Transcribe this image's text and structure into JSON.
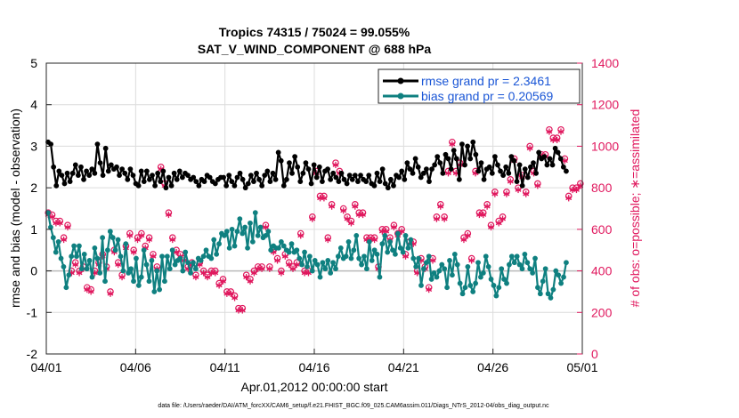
{
  "chart_data": {
    "type": "line",
    "title": "Tropics 74315 / 75024 = 99.055%",
    "subtitle": "SAT_V_WIND_COMPONENT @ 688 hPa",
    "xlabel": "Apr.01,2012 00:00:00 start",
    "ylabel": "rmse and bias (model - observation)",
    "y2label": "# of obs: o=possible; ∗=assimilated",
    "footer": "data file: /Users/raeder/DAI/ATM_forcXX/CAM6_setup/f.e21.FHIST_BGC.f09_025.CAM6assim.011/Diags_NTrS_2012-04/obs_diag_output.nc",
    "xlim": [
      0,
      30
    ],
    "ylim": [
      -2,
      5
    ],
    "y2lim": [
      0,
      1400
    ],
    "xticks": [
      0,
      5,
      10,
      15,
      20,
      25,
      30
    ],
    "xtick_labels": [
      "04/01",
      "04/06",
      "04/11",
      "04/16",
      "04/21",
      "04/26",
      "05/01"
    ],
    "yticks": [
      -2,
      -1,
      0,
      1,
      2,
      3,
      4,
      5
    ],
    "ytick_labels": [
      "-2",
      "-1",
      "0",
      "1",
      "2",
      "3",
      "4",
      "5"
    ],
    "y2ticks": [
      0,
      200,
      400,
      600,
      800,
      1000,
      1200,
      1400
    ],
    "y2tick_labels": [
      "0",
      "200",
      "400",
      "600",
      "800",
      "1000",
      "1200",
      "1400"
    ],
    "grid": true,
    "legend_position": "top-right",
    "series": [
      {
        "name": "rmse grand pr = 2.3461",
        "color": "#000000",
        "marker": "circle",
        "values": [
          3.1,
          3.05,
          2.5,
          2.05,
          2.4,
          2.3,
          2.1,
          2.35,
          2.15,
          2.35,
          2.55,
          2.3,
          2.5,
          2.2,
          2.4,
          2.3,
          2.45,
          2.35,
          3.05,
          2.6,
          2.3,
          2.95,
          2.4,
          2.55,
          2.45,
          2.5,
          2.3,
          2.45,
          2.35,
          2.2,
          2.45,
          2.3,
          2.1,
          2.05,
          2.4,
          2.15,
          2.4,
          2.2,
          2.3,
          2.05,
          2.35,
          2.15,
          2.4,
          2.0,
          2.25,
          2.05,
          2.35,
          2.2,
          2.4,
          2.25,
          2.35,
          2.3,
          2.2,
          2.25,
          2.15,
          2.05,
          2.2,
          2.15,
          2.3,
          2.25,
          2.15,
          2.1,
          2.2,
          2.25,
          2.25,
          2.05,
          2.3,
          2.15,
          2.05,
          2.25,
          2.35,
          2.2,
          2.0,
          2.1,
          2.3,
          2.15,
          2.35,
          2.2,
          2.05,
          2.3,
          2.4,
          2.15,
          2.35,
          2.2,
          2.85,
          2.65,
          2.05,
          2.2,
          2.6,
          2.35,
          2.75,
          2.5,
          2.15,
          2.35,
          2.6,
          2.45,
          2.1,
          2.55,
          2.25,
          2.5,
          2.15,
          2.4,
          2.45,
          2.2,
          2.35,
          2.25,
          2.15,
          2.35,
          2.2,
          2.1,
          2.3,
          2.2,
          2.3,
          2.15,
          2.3,
          2.2,
          2.15,
          2.3,
          2.1,
          2.05,
          2.35,
          2.15,
          2.45,
          2.1,
          2.0,
          2.2,
          2.05,
          2.3,
          2.25,
          2.4,
          2.2,
          2.6,
          2.45,
          2.35,
          2.7,
          2.5,
          2.25,
          2.35,
          2.45,
          2.15,
          2.45,
          2.55,
          2.75,
          2.6,
          2.35,
          2.8,
          2.7,
          2.45,
          2.9,
          2.7,
          2.2,
          3.05,
          2.55,
          3.0,
          2.7,
          3.1,
          2.8,
          2.4,
          2.6,
          2.2,
          2.45,
          2.5,
          2.35,
          2.75,
          2.55,
          2.4,
          2.3,
          2.5,
          2.35,
          2.75,
          2.65,
          2.15,
          2.55,
          2.05,
          2.45,
          2.25,
          2.5,
          2.6,
          2.35,
          2.85,
          2.7,
          2.75,
          2.55,
          2.7,
          2.55,
          2.95,
          2.85,
          2.7,
          2.5,
          2.4
        ]
      },
      {
        "name": "bias grand pr = 0.20569",
        "color": "#0f8080",
        "marker": "circle",
        "values": [
          1.4,
          1.05,
          0.8,
          0.45,
          0.7,
          0.3,
          0.1,
          -0.4,
          -0.1,
          0.35,
          0.6,
          0.35,
          0.6,
          0.05,
          0.4,
          0.05,
          0.25,
          -0.15,
          0.55,
          0.3,
          -0.05,
          0.8,
          -0.25,
          0.5,
          0.95,
          0.8,
          0.5,
          0.75,
          0.35,
          0.0,
          0.65,
          -0.05,
          0.05,
          -0.25,
          0.3,
          -0.35,
          -0.15,
          0.5,
          0.15,
          -0.25,
          0.25,
          -0.5,
          0.0,
          -0.45,
          0.35,
          -0.25,
          0.35,
          0.05,
          0.5,
          0.15,
          0.25,
          0.3,
          0.0,
          0.45,
          0.2,
          -0.05,
          0.2,
          0.05,
          0.3,
          0.25,
          0.35,
          0.5,
          0.35,
          0.3,
          0.75,
          0.4,
          0.65,
          0.9,
          0.85,
          0.95,
          0.55,
          1.0,
          0.6,
          0.95,
          1.25,
          0.9,
          1.05,
          0.55,
          1.15,
          0.7,
          1.4,
          0.85,
          1.05,
          0.8,
          0.85,
          0.95,
          0.5,
          0.6,
          0.55,
          0.55,
          0.7,
          0.6,
          0.5,
          0.45,
          0.65,
          0.45,
          0.5,
          0.3,
          0.15,
          0.45,
          0.1,
          0.35,
          0.0,
          0.25,
          0.15,
          -0.15,
          0.2,
          0.05,
          0.25,
          -0.05,
          0.2,
          0.05,
          0.35,
          0.55,
          0.3,
          0.35,
          0.7,
          0.3,
          0.5,
          0.85,
          0.3,
          0.15,
          0.35,
          0.05,
          0.7,
          0.25,
          0.5,
          0.4,
          -0.15,
          0.65,
          0.85,
          0.45,
          0.7,
          0.5,
          0.4,
          0.9,
          0.55,
          0.45,
          0.85,
          0.55,
          0.75,
          0.3,
          0.1,
          0.3,
          -0.35,
          0.05,
          0.2,
          0.35,
          -0.2,
          -0.05,
          -0.15,
          0.0,
          0.15,
          0.05,
          -0.4,
          0.25,
          -0.1,
          0.4,
          0.15,
          -0.3,
          -0.55,
          -0.4,
          0.1,
          -0.35,
          -0.5,
          -0.3,
          0.2,
          -0.15,
          -0.05,
          0.35,
          0.1,
          -0.2,
          -0.35,
          -0.6,
          -0.4,
          0.05,
          -0.2,
          -0.3,
          0.15,
          0.35,
          0.2,
          0.35,
          0.15,
          0.05,
          0.4,
          0.2,
          0.05,
          -0.05,
          0.3,
          -0.4,
          -0.55,
          -0.25,
          0.05,
          -0.55,
          -0.65,
          -0.45,
          0.0,
          -0.1,
          -0.3,
          -0.15,
          0.2
        ]
      },
      {
        "name": "obs possible",
        "color": "#e0185e",
        "marker": "o",
        "axis": "right",
        "values": [
          680,
          670,
          640,
          640,
          560,
          620,
          400,
          440,
          400,
          420,
          320,
          310,
          400,
          440,
          480,
          420,
          300,
          500,
          440,
          380,
          520,
          580,
          500,
          560,
          580,
          520,
          560,
          480,
          420,
          900,
          820,
          680,
          560,
          500,
          480,
          460,
          420,
          440,
          380,
          440,
          400,
          380,
          400,
          400,
          340,
          360,
          300,
          300,
          280,
          220,
          220,
          380,
          360,
          400,
          420,
          420,
          620,
          420,
          500,
          460,
          400,
          480,
          440,
          420,
          440,
          580,
          400,
          400,
          660,
          880,
          760,
          760,
          560,
          720,
          920,
          880,
          700,
          660,
          640,
          720,
          680,
          680,
          560,
          560,
          560,
          420,
          600,
          600,
          560,
          620,
          580,
          600,
          480,
          540,
          540,
          400,
          460,
          420,
          320,
          460,
          660,
          720,
          660,
          880,
          1020,
          880,
          920,
          560,
          580,
          460,
          880,
          680,
          680,
          720,
          620,
          780,
          640,
          660,
          780,
          840,
          940,
          800,
          860,
          780,
          1000,
          880,
          820,
          960,
          960,
          1080,
          1040,
          1040,
          1080,
          940,
          760,
          800,
          800,
          820
        ]
      },
      {
        "name": "obs assimilated",
        "color": "#e0185e",
        "marker": "*",
        "axis": "right",
        "values": [
          670,
          660,
          630,
          630,
          550,
          610,
          390,
          430,
          390,
          410,
          310,
          300,
          390,
          430,
          470,
          410,
          290,
          490,
          430,
          370,
          510,
          570,
          490,
          550,
          570,
          510,
          550,
          470,
          410,
          890,
          810,
          670,
          550,
          490,
          470,
          450,
          410,
          430,
          370,
          430,
          390,
          370,
          390,
          390,
          330,
          350,
          290,
          290,
          270,
          210,
          210,
          370,
          350,
          390,
          410,
          410,
          610,
          410,
          490,
          450,
          390,
          470,
          430,
          410,
          430,
          570,
          390,
          390,
          650,
          870,
          750,
          750,
          550,
          710,
          910,
          870,
          690,
          650,
          630,
          710,
          670,
          670,
          550,
          550,
          550,
          410,
          590,
          590,
          550,
          610,
          570,
          590,
          470,
          530,
          530,
          390,
          450,
          410,
          310,
          450,
          650,
          710,
          650,
          870,
          1010,
          870,
          910,
          550,
          570,
          450,
          870,
          670,
          670,
          710,
          610,
          770,
          630,
          650,
          770,
          830,
          930,
          790,
          850,
          770,
          990,
          870,
          810,
          950,
          950,
          1070,
          1030,
          1030,
          1070,
          930,
          750,
          790,
          790,
          810
        ]
      }
    ]
  },
  "legend": {
    "rmse_label": "rmse grand pr = 2.3461",
    "bias_label": "bias grand pr = 0.20569"
  }
}
